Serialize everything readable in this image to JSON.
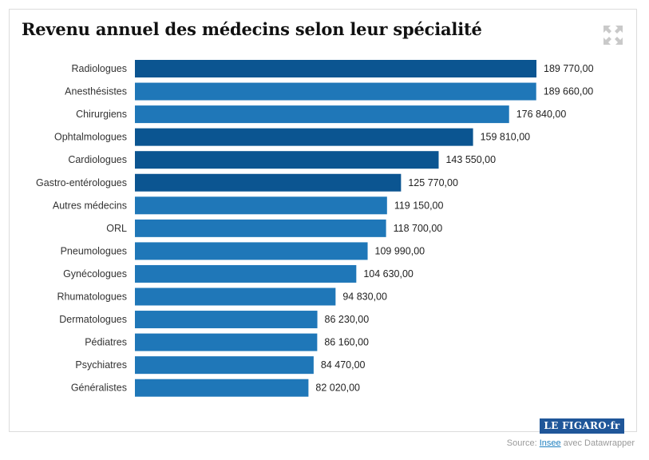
{
  "header": {
    "title": "Revenu annuel des médecins selon leur spécialité",
    "expand_icon": "expand-arrows-icon"
  },
  "colors": {
    "bar_dark": "#0b5591",
    "bar_light": "#1f77b8",
    "logo_bg": "#1f5699",
    "link": "#1d7fbf"
  },
  "chart_data": {
    "type": "bar",
    "orientation": "horizontal",
    "title": "Revenu annuel des médecins selon leur spécialité",
    "xlabel": "",
    "ylabel": "",
    "grid": false,
    "xlim": [
      0,
      189770
    ],
    "categories": [
      "Radiologues",
      "Anesthésistes",
      "Chirurgiens",
      "Ophtalmologues",
      "Cardiologues",
      "Gastro-entérologues",
      "Autres médecins",
      "ORL",
      "Pneumologues",
      "Gynécologues",
      "Rhumatologues",
      "Dermatologues",
      "Pédiatres",
      "Psychiatres",
      "Généralistes"
    ],
    "values": [
      189770,
      189660,
      176840,
      159810,
      143550,
      125770,
      119150,
      118700,
      109990,
      104630,
      94830,
      86230,
      86160,
      84470,
      82020
    ],
    "value_labels": [
      "189 770,00",
      "189 660,00",
      "176 840,00",
      "159 810,00",
      "143 550,00",
      "125 770,00",
      "119 150,00",
      "118 700,00",
      "109 990,00",
      "104 630,00",
      "94 830,00",
      "86 230,00",
      "86 160,00",
      "84 470,00",
      "82 020,00"
    ],
    "bar_colors": [
      "#0b5591",
      "#1f77b8",
      "#1f77b8",
      "#0b5591",
      "#0b5591",
      "#0b5591",
      "#1f77b8",
      "#1f77b8",
      "#1f77b8",
      "#1f77b8",
      "#1f77b8",
      "#1f77b8",
      "#1f77b8",
      "#1f77b8",
      "#1f77b8"
    ]
  },
  "footer": {
    "logo_text": "LE FIGARO·fr",
    "source_prefix": "Source:",
    "source_link": "Insee",
    "source_suffix": "avec Datawrapper"
  }
}
